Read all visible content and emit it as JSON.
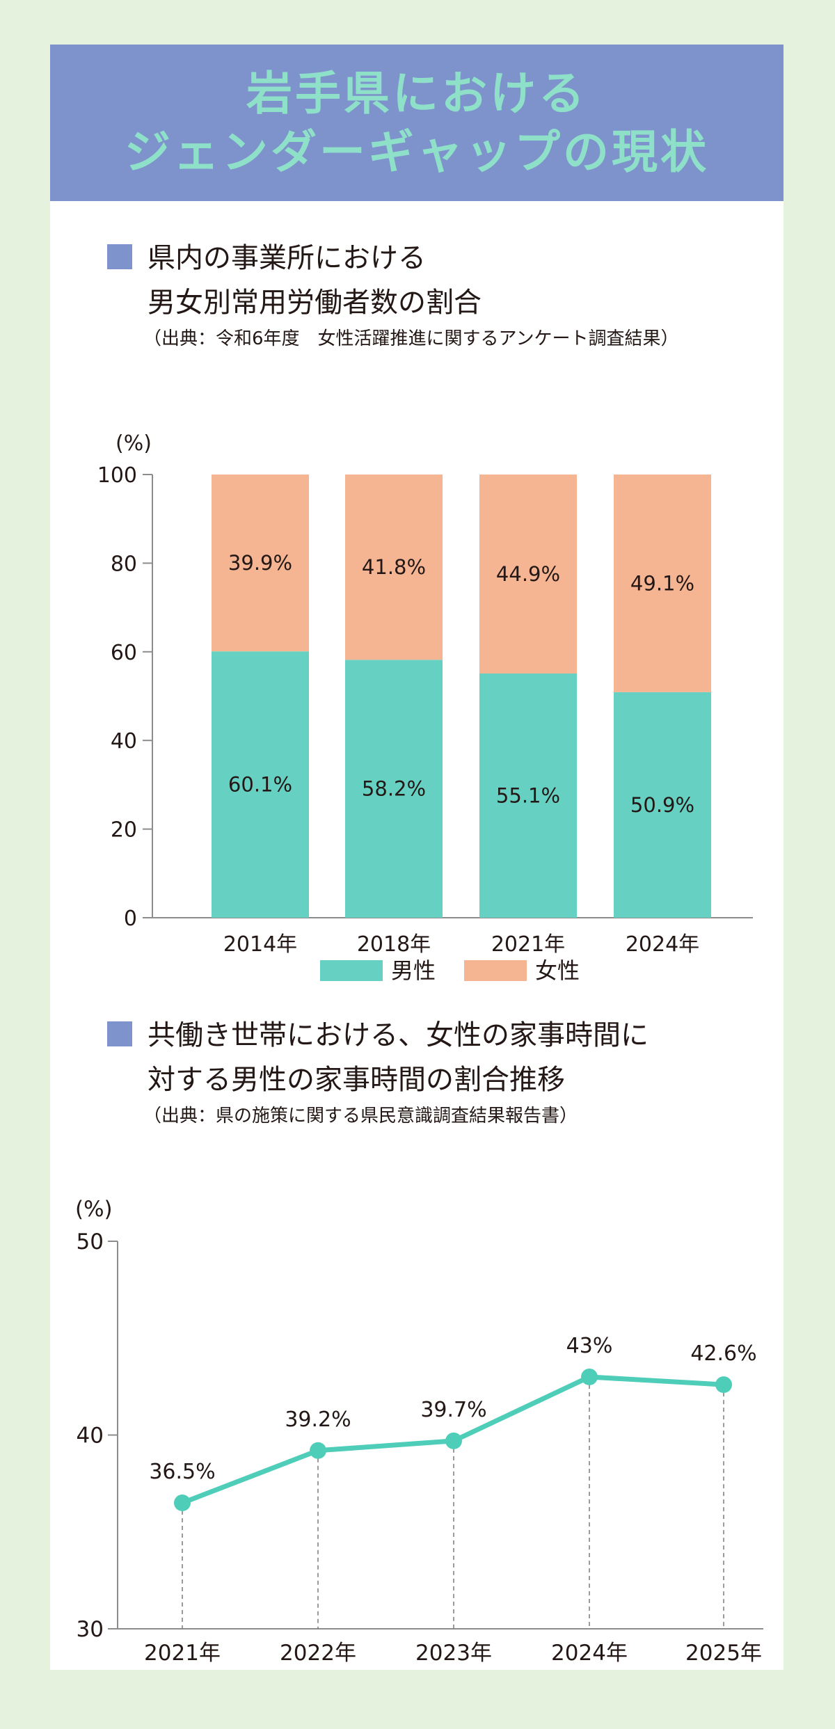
{
  "banner": {
    "title_line1": "岩手県における",
    "title_line2": "ジェンダーギャップの現状"
  },
  "colors": {
    "background": "#e5f2de",
    "banner": "#7e93cb",
    "banner_text": "#8ee0c9",
    "male": "#66d1c2",
    "female": "#f5b593",
    "line": "#4ecdb9"
  },
  "section1": {
    "title_line1": "県内の事業所における",
    "title_line2": "男女別常用労働者数の割合",
    "source": "（出典：令和6年度　女性活躍推進に関するアンケート調査結果）"
  },
  "section2": {
    "title_line1": "共働き世帯における、女性の家事時間に",
    "title_line2": "対する男性の家事時間の割合推移",
    "source": "（出典：県の施策に関する県民意識調査結果報告書）"
  },
  "chart_data": [
    {
      "type": "bar",
      "stacked": true,
      "categories": [
        "2014年",
        "2018年",
        "2021年",
        "2024年"
      ],
      "series": [
        {
          "name": "男性",
          "values": [
            60.1,
            58.2,
            55.1,
            50.9
          ],
          "labels": [
            "60.1%",
            "58.2%",
            "55.1%",
            "50.9%"
          ],
          "color": "#66d1c2"
        },
        {
          "name": "女性",
          "values": [
            39.9,
            41.8,
            44.9,
            49.1
          ],
          "labels": [
            "39.9%",
            "41.8%",
            "44.9%",
            "49.1%"
          ],
          "color": "#f5b593"
        }
      ],
      "ylabel": "(%)",
      "ylim": [
        0,
        100
      ],
      "yticks": [
        0,
        20,
        40,
        60,
        80,
        100
      ],
      "legend_position": "bottom-center",
      "grid": false
    },
    {
      "type": "line",
      "x": [
        "2021年",
        "2022年",
        "2023年",
        "2024年",
        "2025年"
      ],
      "values": [
        36.5,
        39.2,
        39.7,
        43,
        42.6
      ],
      "labels": [
        "36.5%",
        "39.2%",
        "39.7%",
        "43%",
        "42.6%"
      ],
      "ylabel": "(%)",
      "ylim": [
        30,
        50
      ],
      "yticks": [
        30,
        40,
        50
      ],
      "color": "#4ecdb9",
      "drop_lines": true,
      "grid": false
    }
  ]
}
